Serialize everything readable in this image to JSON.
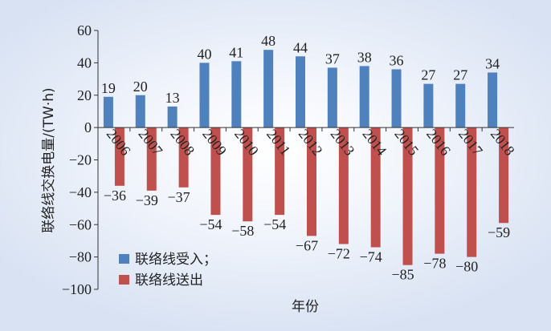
{
  "chart_data": {
    "type": "bar",
    "xlabel": "年份",
    "ylabel": "联络线交换电量/(TW·h)",
    "ylim": [
      -100,
      60
    ],
    "yticks": [
      60,
      40,
      20,
      0,
      -20,
      -40,
      -60,
      -80,
      -100
    ],
    "categories": [
      "2006",
      "2007",
      "2008",
      "2009",
      "2010",
      "2011",
      "2012",
      "2013",
      "2014",
      "2015",
      "2016",
      "2017",
      "2018"
    ],
    "series": [
      {
        "name": "联络线受入；",
        "color": "#4f81bd",
        "values": [
          19,
          20,
          13,
          40,
          41,
          48,
          44,
          37,
          38,
          36,
          27,
          27,
          34
        ]
      },
      {
        "name": "联络线送出",
        "color": "#c0504d",
        "values": [
          -36,
          -39,
          -37,
          -54,
          -58,
          -54,
          -67,
          -72,
          -74,
          -85,
          -78,
          -80,
          -59
        ]
      }
    ],
    "legend": "bottom-left",
    "grid": false
  }
}
